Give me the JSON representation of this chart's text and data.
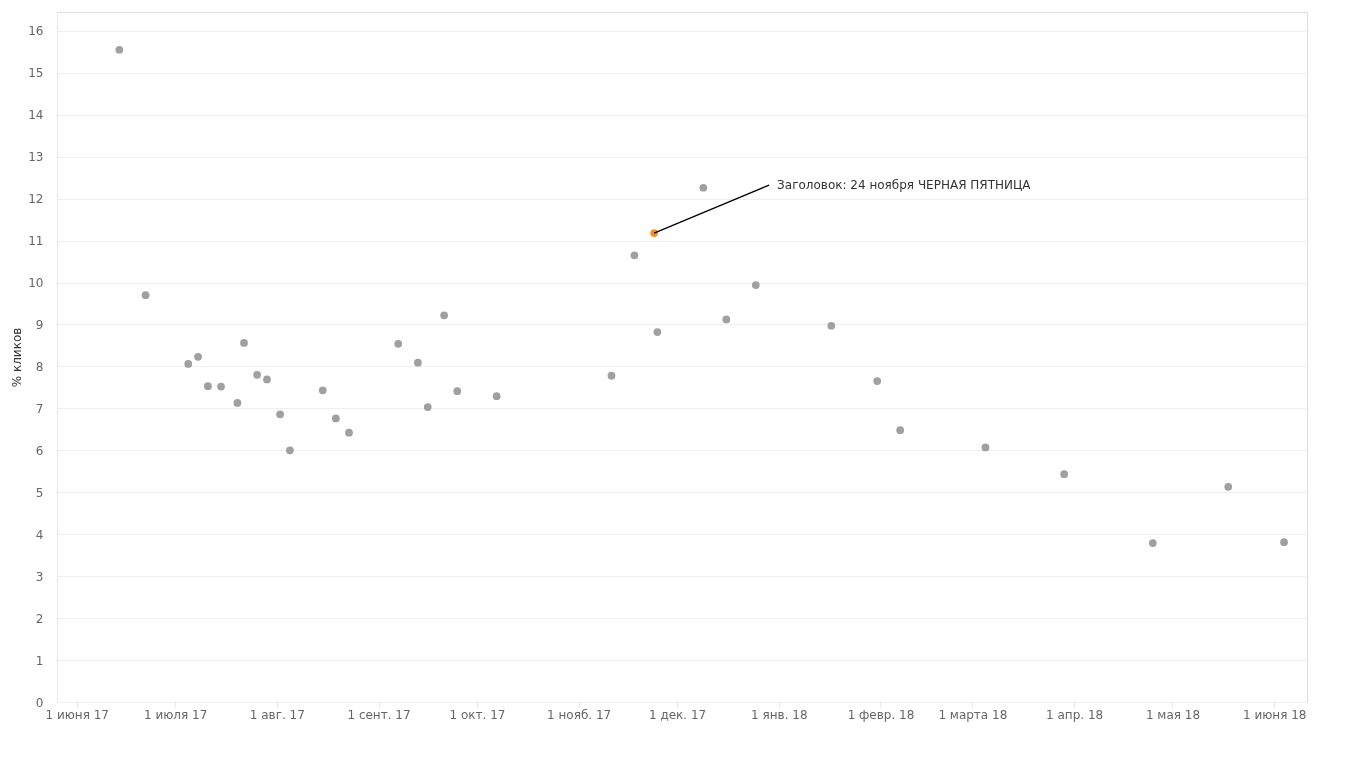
{
  "chart_data": {
    "type": "scatter",
    "ylabel": "% кликов",
    "xlim": [
      "2017-05-26",
      "2018-06-11"
    ],
    "ylim": [
      0,
      16.45
    ],
    "xticks": [
      {
        "value": "2017-06-01",
        "label": "1 июня 17"
      },
      {
        "value": "2017-07-01",
        "label": "1 июля 17"
      },
      {
        "value": "2017-08-01",
        "label": "1 авг. 17"
      },
      {
        "value": "2017-09-01",
        "label": "1 сент. 17"
      },
      {
        "value": "2017-10-01",
        "label": "1 окт. 17"
      },
      {
        "value": "2017-11-01",
        "label": "1 нояб. 17"
      },
      {
        "value": "2017-12-01",
        "label": "1 дек. 17"
      },
      {
        "value": "2018-01-01",
        "label": "1 янв. 18"
      },
      {
        "value": "2018-02-01",
        "label": "1 февр. 18"
      },
      {
        "value": "2018-03-01",
        "label": "1 марта 18"
      },
      {
        "value": "2018-04-01",
        "label": "1 апр. 18"
      },
      {
        "value": "2018-05-01",
        "label": "1 мая 18"
      },
      {
        "value": "2018-06-01",
        "label": "1 июня 18"
      }
    ],
    "yticks": [
      0,
      1,
      2,
      3,
      4,
      5,
      6,
      7,
      8,
      9,
      10,
      11,
      12,
      13,
      14,
      15,
      16
    ],
    "grid": "y",
    "legend": false,
    "marker": "circle",
    "series": [
      {
        "color": "#a0a0a0",
        "x": [
          "2017-06-14",
          "2017-06-22",
          "2017-07-05",
          "2017-07-08",
          "2017-07-11",
          "2017-07-15",
          "2017-07-20",
          "2017-07-22",
          "2017-07-26",
          "2017-07-29",
          "2017-08-02",
          "2017-08-05",
          "2017-08-15",
          "2017-08-19",
          "2017-08-23",
          "2017-09-07",
          "2017-09-13",
          "2017-09-16",
          "2017-09-21",
          "2017-09-25",
          "2017-10-07",
          "2017-11-11",
          "2017-11-18",
          "2017-11-25",
          "2017-12-09",
          "2017-12-16",
          "2017-12-25",
          "2018-01-17",
          "2018-01-31",
          "2018-02-07",
          "2018-03-05",
          "2018-03-29",
          "2018-04-25",
          "2018-05-18",
          "2018-06-04"
        ],
        "values": [
          15.55,
          9.7,
          8.06,
          8.23,
          7.53,
          7.52,
          7.13,
          8.56,
          7.8,
          7.69,
          6.86,
          6.0,
          7.43,
          6.76,
          6.42,
          8.54,
          8.09,
          7.03,
          9.22,
          7.41,
          7.29,
          7.78,
          10.65,
          8.82,
          12.26,
          9.12,
          9.94,
          8.97,
          7.65,
          6.48,
          6.07,
          5.43,
          3.79,
          5.13,
          3.81
        ]
      },
      {
        "color": "#f28e2b",
        "x": [
          "2017-11-24"
        ],
        "values": [
          11.18
        ]
      }
    ],
    "annotations": [
      {
        "text": "Заголовок: 24 ноября ЧЕРНАЯ ПЯТНИЦА",
        "x": "2017-11-24",
        "y": 11.18
      }
    ]
  }
}
